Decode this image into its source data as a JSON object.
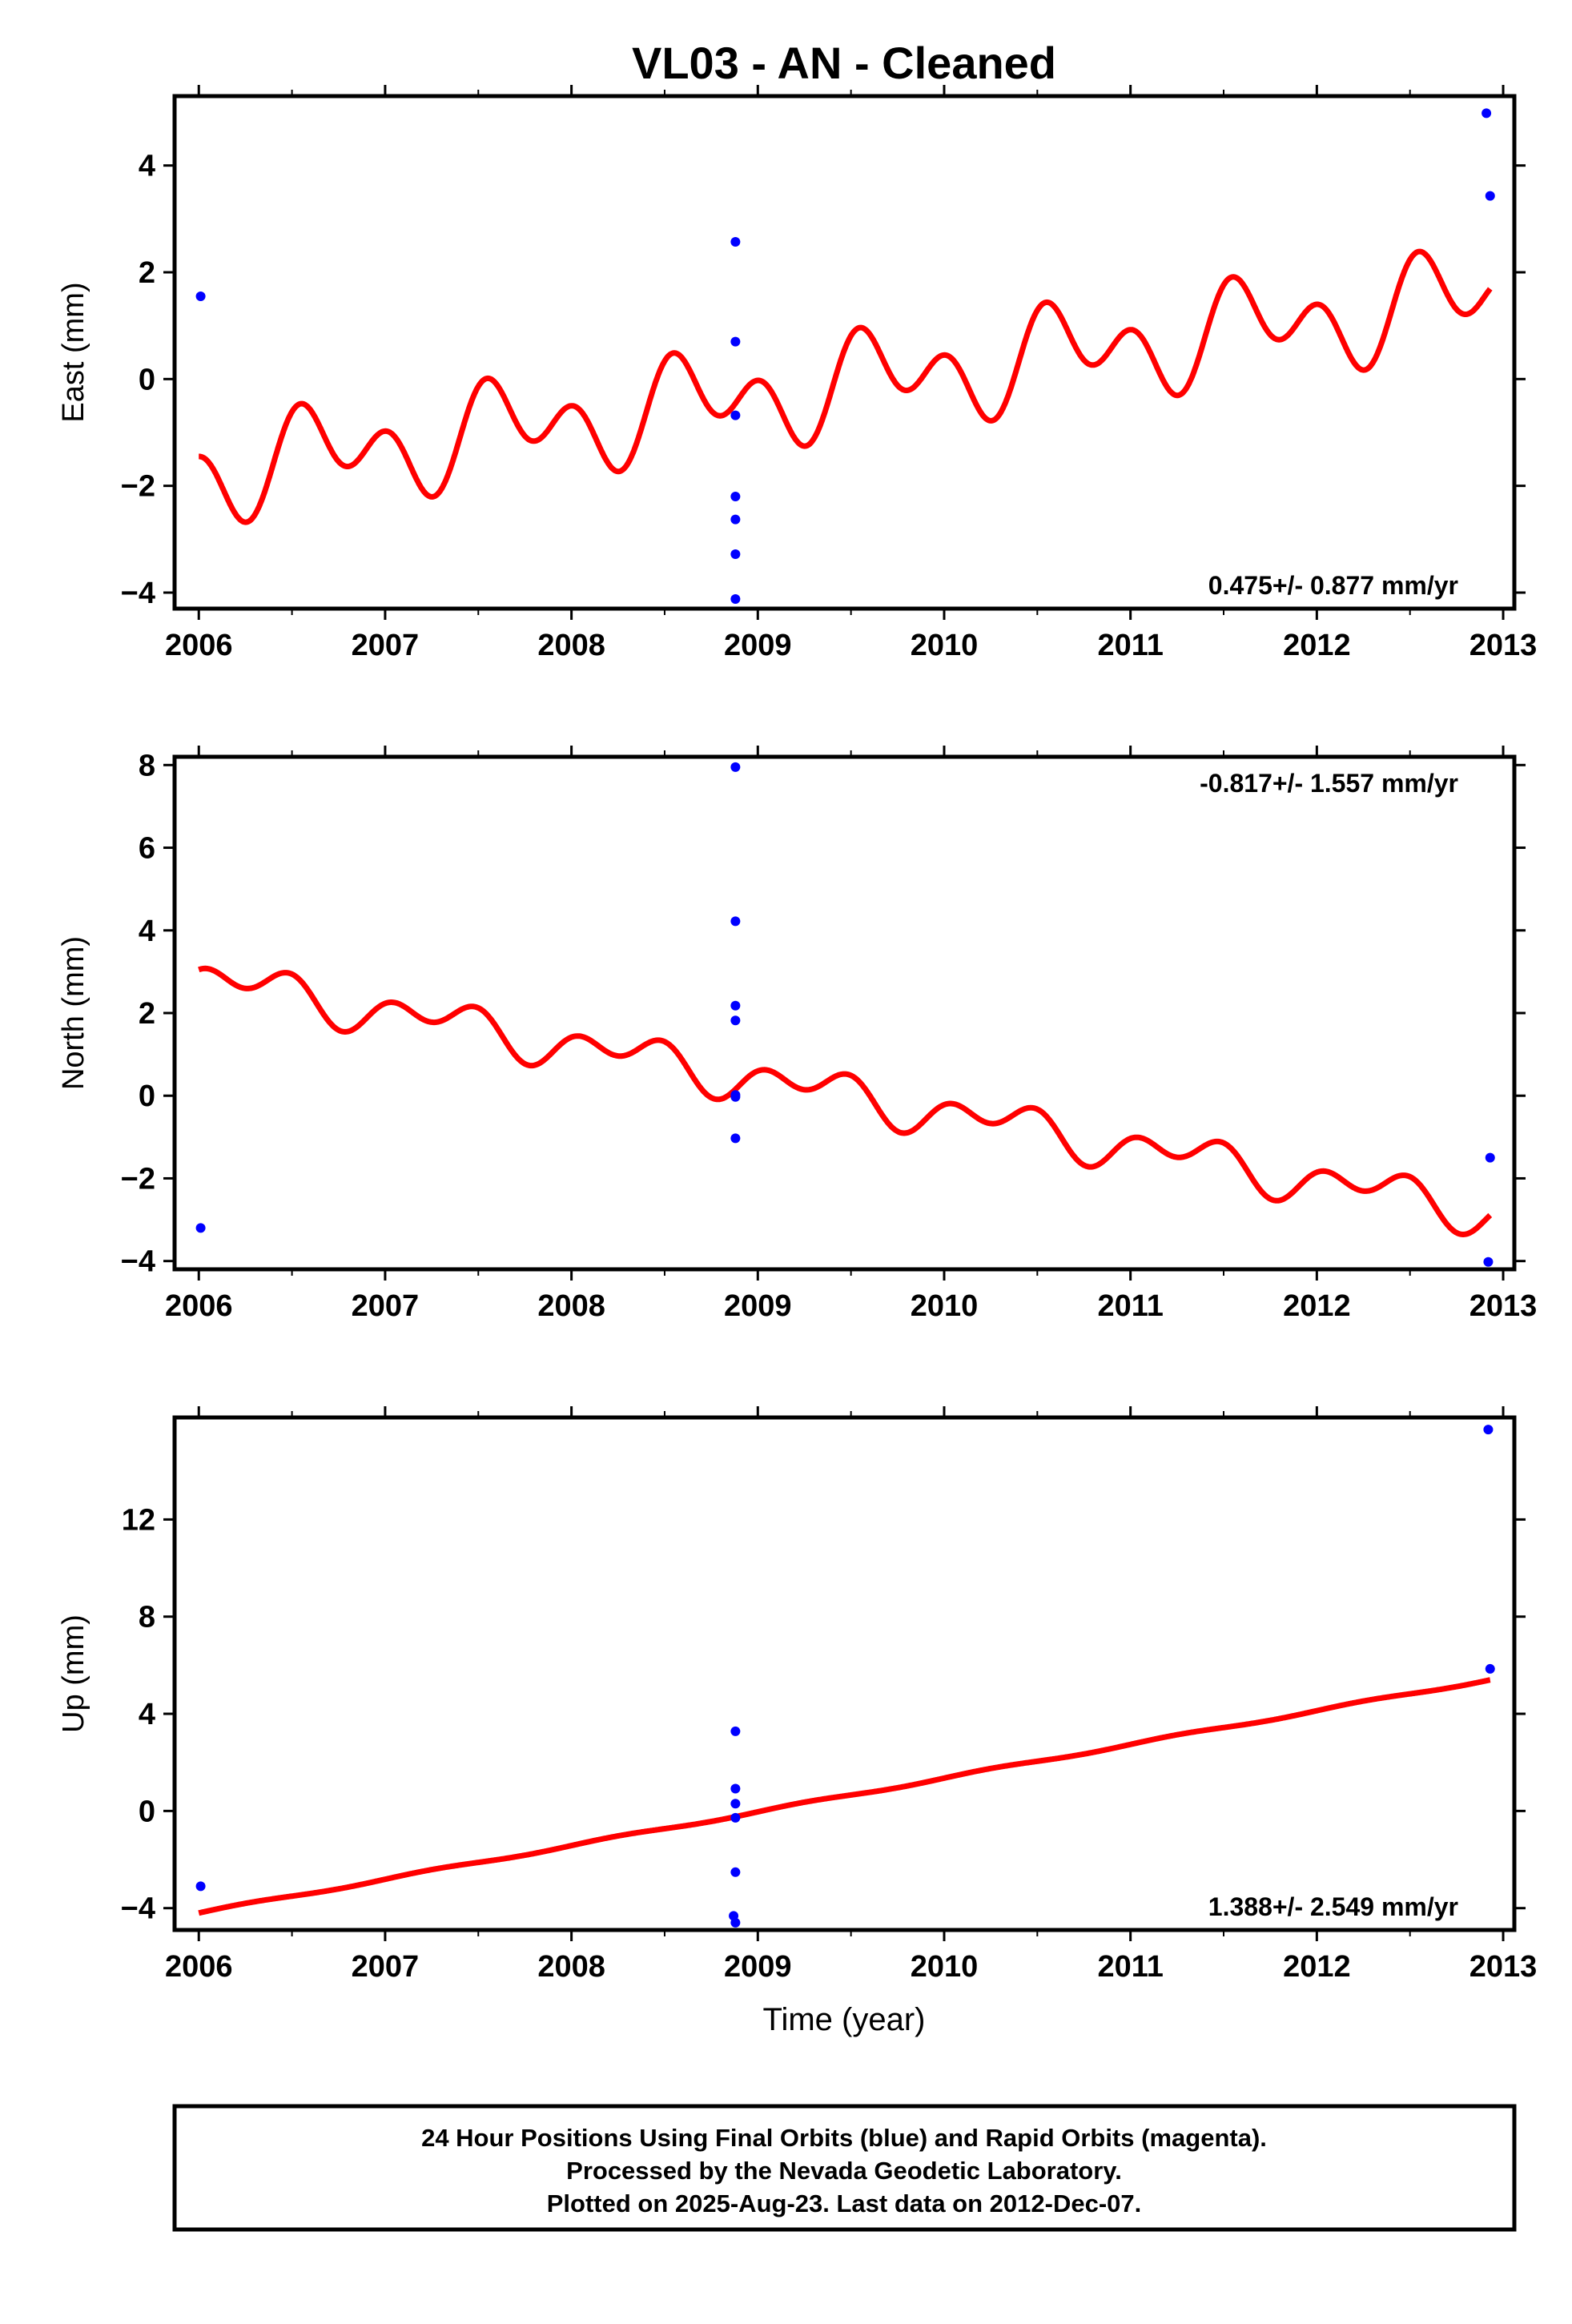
{
  "title": "VL03  - AN - Cleaned",
  "xlabel": "Time (year)",
  "footer": {
    "line1": "24 Hour Positions Using Final Orbits (blue) and Rapid Orbits (magenta).",
    "line2": "Processed by the Nevada Geodetic Laboratory.",
    "line3": "Plotted on 2025-Aug-23. Last data on 2012-Dec-07."
  },
  "colors": {
    "data": "#0000ff",
    "model": "#ff0000",
    "axes": "#000000"
  },
  "chart_data": [
    {
      "type": "scatter",
      "component": "east",
      "ylabel": "East (mm)",
      "rate_text": "0.475+/- 0.877 mm/yr",
      "rate_position": "bottom-right",
      "xlim": [
        2005.87,
        2013.06
      ],
      "ylim": [
        -4.3,
        5.3
      ],
      "xticks": [
        2006,
        2007,
        2008,
        2009,
        2010,
        2011,
        2012,
        2013
      ],
      "yticks": [
        -4,
        -2,
        0,
        2,
        4
      ],
      "points": {
        "x": [
          2006.01,
          2008.88,
          2008.88,
          2008.88,
          2008.88,
          2008.88,
          2008.88,
          2008.88,
          2012.91,
          2012.93
        ],
        "y": [
          1.55,
          2.57,
          0.7,
          -0.68,
          -2.2,
          -2.63,
          -3.28,
          -4.12,
          4.98,
          3.43
        ]
      },
      "model": {
        "trend_intercept_at_2006": -1.75,
        "trend_rate_mm_per_yr": 0.475,
        "annual_cos": -0.3,
        "annual_sin": -0.45,
        "semiannual_cos": 0.6,
        "semiannual_sin": 0.2,
        "fit_range": [
          2006.0,
          2012.93
        ]
      }
    },
    {
      "type": "scatter",
      "component": "north",
      "ylabel": "North (mm)",
      "rate_text": "-0.817+/- 1.557 mm/yr",
      "rate_position": "top-right",
      "xlim": [
        2005.87,
        2013.06
      ],
      "ylim": [
        -4.2,
        8.2
      ],
      "xticks": [
        2006,
        2007,
        2008,
        2009,
        2010,
        2011,
        2012,
        2013
      ],
      "yticks": [
        -4,
        -2,
        0,
        2,
        4,
        6,
        8
      ],
      "points": {
        "x": [
          2006.01,
          2008.88,
          2008.88,
          2008.88,
          2008.88,
          2008.88,
          2008.88,
          2008.88,
          2012.93,
          2012.92
        ],
        "y": [
          -3.2,
          7.95,
          4.22,
          2.18,
          1.82,
          0.02,
          -0.03,
          -1.03,
          -1.5,
          -4.02
        ]
      },
      "model": {
        "trend_intercept_at_2006": 2.85,
        "trend_rate_mm_per_yr": -0.817,
        "annual_cos": -0.15,
        "annual_sin": 0.3,
        "semiannual_cos": 0.35,
        "semiannual_sin": 0.05,
        "fit_range": [
          2006.0,
          2012.93
        ]
      }
    },
    {
      "type": "scatter",
      "component": "up",
      "ylabel": "Up (mm)",
      "rate_text": "1.388+/- 2.549 mm/yr",
      "rate_position": "bottom-right",
      "xlim": [
        2005.87,
        2013.06
      ],
      "ylim": [
        -4.9,
        16.2
      ],
      "xticks": [
        2006,
        2007,
        2008,
        2009,
        2010,
        2011,
        2012,
        2013
      ],
      "yticks": [
        -4,
        0,
        4,
        8,
        12
      ],
      "points": {
        "x": [
          2006.01,
          2008.88,
          2008.88,
          2008.88,
          2008.88,
          2008.88,
          2008.87,
          2008.88,
          2012.92,
          2012.93
        ],
        "y": [
          -3.1,
          3.28,
          0.92,
          0.3,
          -0.28,
          -2.52,
          -4.32,
          -4.6,
          15.7,
          5.85
        ]
      },
      "model": {
        "trend_intercept_at_2006": -4.2,
        "trend_rate_mm_per_yr": 1.388,
        "annual_cos": 0.0,
        "annual_sin": 0.05,
        "semiannual_cos": 0.0,
        "semiannual_sin": 0.0,
        "fit_range": [
          2006.0,
          2012.93
        ]
      }
    }
  ]
}
